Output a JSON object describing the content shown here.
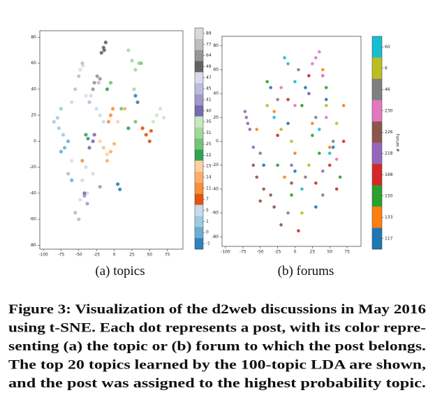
{
  "chart_data": [
    {
      "type": "scatter",
      "subcaption": "(a) topics",
      "xlim": [
        -105,
        97
      ],
      "ylim": [
        -83,
        85
      ],
      "xticks": [
        -100,
        -75,
        -50,
        -25,
        0,
        25,
        50,
        75
      ],
      "yticks": [
        -80,
        -60,
        -40,
        -20,
        0,
        20,
        40,
        60,
        80
      ],
      "series": [
        {
          "name": "89",
          "color": "#d9d9d9",
          "x": [
            -45,
            -38,
            -30,
            -48,
            -33,
            -40
          ],
          "y": [
            -30,
            -40,
            -25,
            -45,
            35,
            -20
          ]
        },
        {
          "name": "77",
          "color": "#bdbdbd",
          "x": [
            -55,
            -22,
            -50,
            -65
          ],
          "y": [
            -55,
            45,
            -60,
            -25
          ]
        },
        {
          "name": "64",
          "color": "#969696",
          "x": [
            -28,
            -24,
            -30,
            -20
          ],
          "y": [
            45,
            50,
            40,
            48
          ]
        },
        {
          "name": "49",
          "color": "#636363",
          "x": [
            -15,
            -12,
            -18,
            -14
          ],
          "y": [
            72,
            76,
            68,
            70
          ]
        },
        {
          "name": "47",
          "color": "#dadaeb",
          "x": [
            -48,
            -44,
            -40,
            -60
          ],
          "y": [
            55,
            58,
            35,
            -15
          ]
        },
        {
          "name": "45",
          "color": "#bcbddc",
          "x": [
            -50,
            -45,
            -35,
            -55
          ],
          "y": [
            50,
            60,
            30,
            40
          ]
        },
        {
          "name": "41",
          "color": "#9e9ac8",
          "x": [
            -42,
            -38,
            -20,
            -15
          ],
          "y": [
            -42,
            -48,
            -35,
            -5
          ]
        },
        {
          "name": "40",
          "color": "#756bb1",
          "x": [
            -30,
            -28,
            -35,
            -42
          ],
          "y": [
            0,
            5,
            -5,
            -40
          ]
        },
        {
          "name": "35",
          "color": "#c7e9c0",
          "x": [
            60,
            65,
            55,
            70
          ],
          "y": [
            20,
            25,
            15,
            18
          ]
        },
        {
          "name": "31",
          "color": "#a1d99b",
          "x": [
            25,
            30,
            20,
            35,
            28
          ],
          "y": [
            62,
            55,
            70,
            60,
            40
          ]
        },
        {
          "name": "25",
          "color": "#74c476",
          "x": [
            38,
            10,
            -5,
            30
          ],
          "y": [
            60,
            25,
            45,
            15
          ]
        },
        {
          "name": "22",
          "color": "#31a354",
          "x": [
            -40,
            -37,
            -10,
            20
          ],
          "y": [
            5,
            2,
            40,
            10
          ]
        },
        {
          "name": "15",
          "color": "#fdd0a2",
          "x": [
            -15,
            -10,
            -20,
            5
          ],
          "y": [
            -5,
            -10,
            0,
            15
          ]
        },
        {
          "name": "14",
          "color": "#fdae6b",
          "x": [
            -5,
            0,
            -10,
            15
          ],
          "y": [
            -8,
            -2,
            -15,
            25
          ]
        },
        {
          "name": "11",
          "color": "#fd8d3c",
          "x": [
            -5,
            -2,
            -8,
            -45
          ],
          "y": [
            20,
            25,
            15,
            -15
          ]
        },
        {
          "name": "7",
          "color": "#e6550d",
          "x": [
            45,
            50,
            40,
            52
          ],
          "y": [
            5,
            0,
            10,
            8
          ]
        },
        {
          "name": "5",
          "color": "#c6dbef",
          "x": [
            -20,
            -25,
            -15,
            -60
          ],
          "y": [
            20,
            25,
            15,
            30
          ]
        },
        {
          "name": "1",
          "color": "#9ecae1",
          "x": [
            -80,
            -78,
            -75,
            -85,
            -72
          ],
          "y": [
            18,
            10,
            25,
            15,
            5
          ]
        },
        {
          "name": "0",
          "color": "#6baed6",
          "x": [
            -70,
            -65,
            -75,
            -60
          ],
          "y": [
            -5,
            0,
            -8,
            -30
          ]
        },
        {
          "name": "-1",
          "color": "#3182bd",
          "x": [
            30,
            33,
            5,
            8
          ],
          "y": [
            35,
            30,
            -33,
            -37
          ]
        }
      ]
    },
    {
      "type": "scatter",
      "subcaption": "(b) forums",
      "colorbar_label": "Forum #",
      "xlim": [
        -105,
        95
      ],
      "ylim": [
        -88,
        88
      ],
      "xticks": [
        -100,
        -75,
        -50,
        -25,
        0,
        25,
        50,
        75
      ],
      "yticks": [
        -80,
        -60,
        -40,
        -20,
        0,
        20,
        40,
        60,
        80
      ],
      "series": [
        {
          "name": "60",
          "color": "#17becf",
          "x": [
            -15,
            -10,
            20,
            35,
            0,
            -30,
            50,
            10
          ],
          "y": [
            70,
            65,
            40,
            10,
            50,
            20,
            -10,
            -40
          ]
        },
        {
          "name": "6",
          "color": "#bcbd22",
          "x": [
            40,
            45,
            -5,
            20,
            -20,
            60,
            10,
            -40
          ],
          "y": [
            55,
            30,
            0,
            -20,
            10,
            15,
            -60,
            30
          ]
        },
        {
          "name": "46",
          "color": "#7f7f7f",
          "x": [
            -25,
            5,
            30,
            55,
            -50,
            15,
            40,
            -10
          ],
          "y": [
            35,
            60,
            20,
            0,
            -10,
            -30,
            -45,
            -60
          ]
        },
        {
          "name": "230",
          "color": "#e377c2",
          "x": [
            30,
            35,
            25,
            40,
            45,
            0,
            -20,
            60
          ],
          "y": [
            70,
            75,
            65,
            55,
            20,
            30,
            45,
            -15
          ]
        },
        {
          "name": "226",
          "color": "#8c564b",
          "x": [
            -45,
            -55,
            -35,
            -50,
            -20,
            -5,
            -60,
            -30
          ],
          "y": [
            -40,
            -30,
            -45,
            -50,
            -70,
            -35,
            -20,
            -55
          ]
        },
        {
          "name": "218",
          "color": "#9467bd",
          "x": [
            -70,
            -68,
            -72,
            -65,
            -60,
            20,
            -5,
            40
          ],
          "y": [
            20,
            15,
            25,
            10,
            -5,
            40,
            -20,
            -25
          ]
        },
        {
          "name": "168",
          "color": "#d62728",
          "x": [
            20,
            50,
            70,
            30,
            -10,
            60,
            5,
            -25
          ],
          "y": [
            55,
            -20,
            0,
            -35,
            35,
            -40,
            -75,
            5
          ]
        },
        {
          "name": "150",
          "color": "#2ca02c",
          "x": [
            -40,
            10,
            35,
            65,
            -25,
            45,
            -5,
            25
          ],
          "y": [
            50,
            30,
            -10,
            -30,
            -20,
            45,
            -45,
            5
          ]
        },
        {
          "name": "133",
          "color": "#ff7f0e",
          "x": [
            -55,
            25,
            50,
            -30,
            0,
            40,
            70,
            -15
          ],
          "y": [
            10,
            15,
            -5,
            25,
            -10,
            60,
            30,
            -30
          ]
        },
        {
          "name": "117",
          "color": "#1f77b4",
          "x": [
            -35,
            15,
            45,
            -10,
            0,
            55,
            -45,
            30
          ],
          "y": [
            45,
            45,
            35,
            15,
            -25,
            -5,
            -20,
            -55
          ]
        }
      ]
    }
  ],
  "caption": [
    "Figure 3: Visualization of the d2web discussions in May 2016",
    "using t-SNE. Each dot represents a post, with its color repre-",
    "senting (a) the topic or (b) forum to which the post belongs.",
    "The top 20 topics learned by the 100-topic LDA are shown,",
    "and the post was assigned to the highest probability topic."
  ]
}
